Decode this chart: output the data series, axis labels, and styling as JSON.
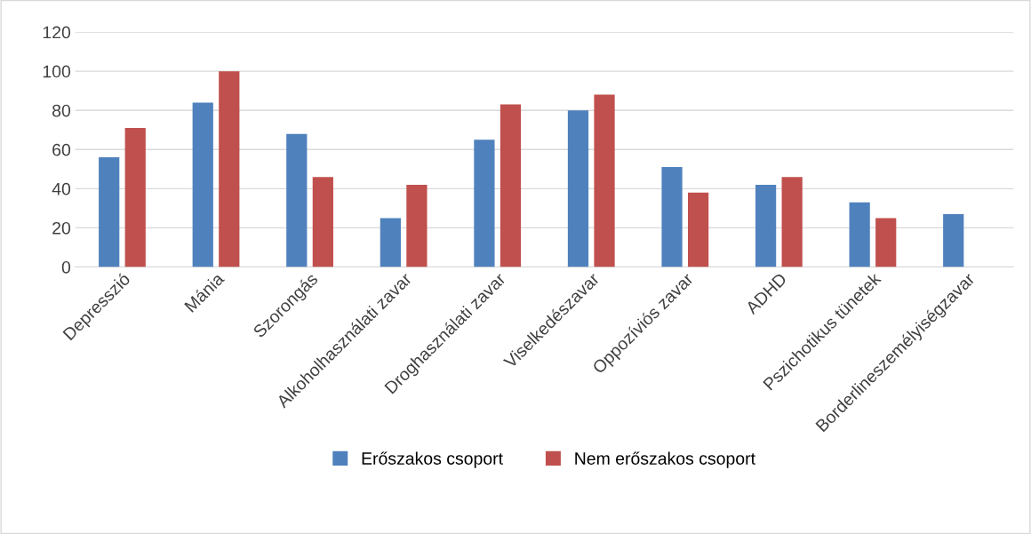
{
  "chart_data": {
    "type": "bar",
    "categories": [
      "Depresszió",
      "Mánia",
      "Szorongás",
      "Alkoholhasználati zavar",
      "Droghasználati zavar",
      "Viselkedészavar",
      "Oppozíviós zavar",
      "ADHD",
      "Pszichotikus tünetek",
      "Borderlineszemélyiségzavar"
    ],
    "series": [
      {
        "name": "Erőszakos csoport",
        "color": "#4f81bd",
        "values": [
          56,
          84,
          68,
          25,
          65,
          80,
          51,
          42,
          33,
          27
        ]
      },
      {
        "name": "Nem erőszakos csoport",
        "color": "#c0504d",
        "values": [
          71,
          100,
          46,
          42,
          83,
          88,
          38,
          46,
          25,
          null
        ]
      }
    ],
    "ylim": [
      0,
      120
    ],
    "yticks": [
      0,
      20,
      40,
      60,
      80,
      100,
      120
    ],
    "grid": "y",
    "legend": "bottom"
  }
}
